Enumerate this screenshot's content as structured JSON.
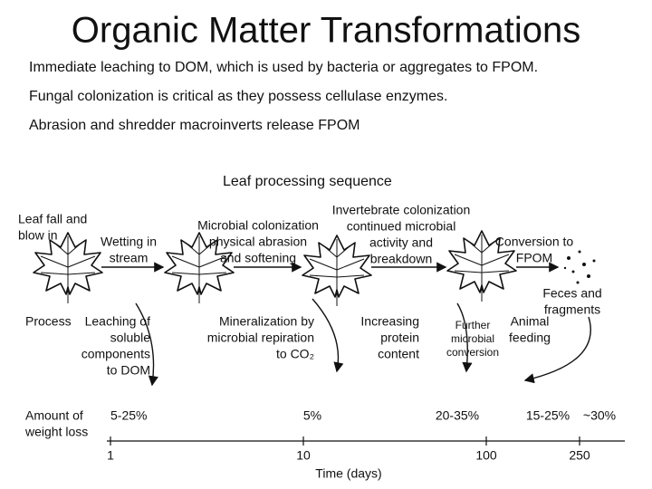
{
  "title": "Organic Matter Transformations",
  "bullets": [
    "Immediate leaching to DOM, which is used by bacteria or aggregates to FPOM.",
    "Fungal colonization is critical as they possess cellulase enzymes.",
    "Abrasion and shredder macroinverts release FPOM"
  ],
  "diagram": {
    "title": "Leaf processing sequence",
    "stages": [
      {
        "lines": [
          "Leaf fall and",
          "blow in"
        ]
      },
      {
        "lines": [
          "Wetting in",
          "stream"
        ]
      },
      {
        "lines": [
          "Microbial colonization",
          "physical abrasion",
          "and softening"
        ]
      },
      {
        "lines": [
          "Invertebrate colonization",
          "continued microbial",
          "activity and",
          "breakdown"
        ]
      },
      {
        "lines": [
          "Conversion to",
          "FPOM"
        ]
      },
      {
        "lines": [
          "Feces and",
          "fragments"
        ]
      }
    ],
    "process_label": "Process",
    "processes": [
      {
        "lines": [
          "Leaching of",
          "soluble",
          "components",
          "to DOM"
        ]
      },
      {
        "lines": [
          "Mineralization by",
          "microbial repiration",
          "to CO₂"
        ]
      },
      {
        "lines": [
          "Increasing",
          "protein",
          "content"
        ]
      },
      {
        "lines": [
          "Further",
          "microbial",
          "conversion"
        ]
      },
      {
        "lines": [
          "Animal",
          "feeding"
        ]
      }
    ],
    "loss_label": [
      "Amount of",
      "weight loss"
    ],
    "losses": [
      "5-25%",
      "5%",
      "20-35%",
      "15-25%",
      "~30%"
    ],
    "axis_label": "Time (days)",
    "ticks": [
      "1",
      "10",
      "100",
      "250"
    ]
  }
}
